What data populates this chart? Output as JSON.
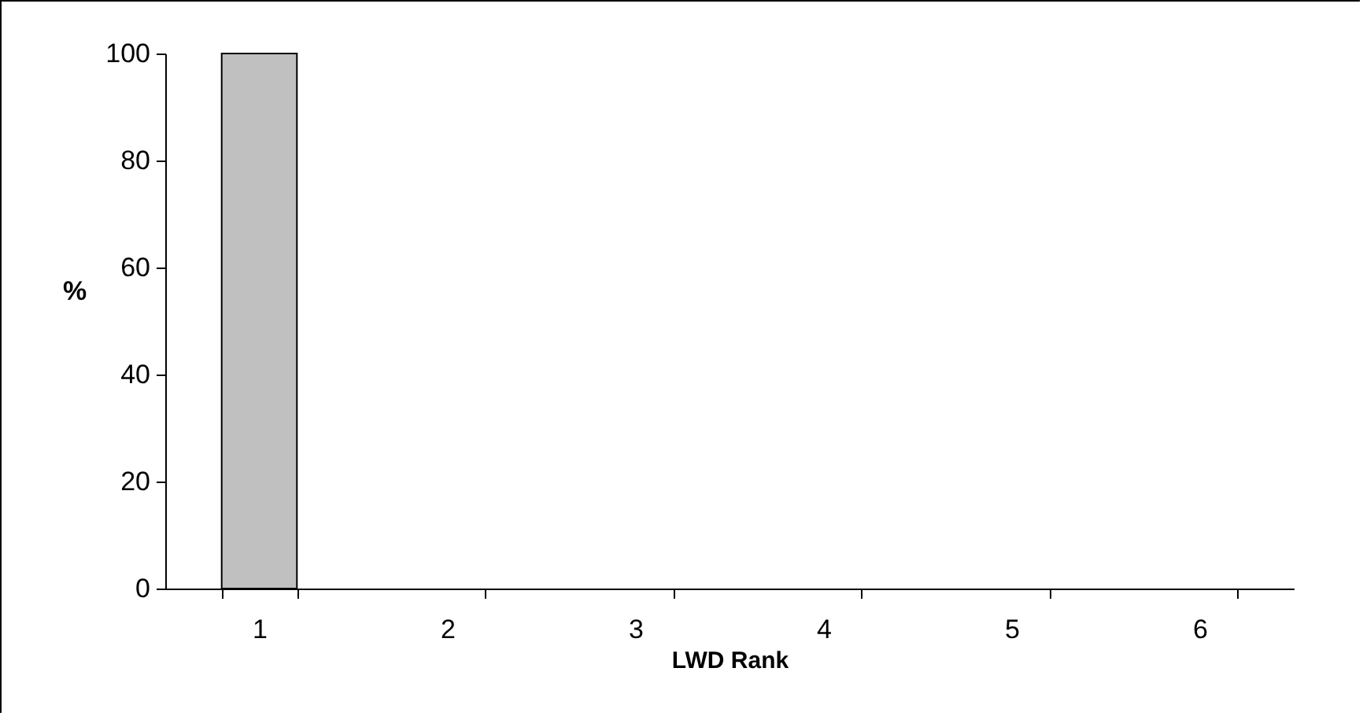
{
  "chart_data": {
    "type": "bar",
    "xlabel": "LWD Rank",
    "ylabel": "%",
    "categories": [
      "1",
      "2",
      "3",
      "4",
      "5",
      "6"
    ],
    "values": [
      100,
      0,
      0,
      0,
      0,
      0
    ],
    "color": "#c0c0c0",
    "ylim": [
      0,
      100
    ],
    "yticks": [
      0,
      20,
      40,
      60,
      80,
      100
    ],
    "grid": false
  }
}
